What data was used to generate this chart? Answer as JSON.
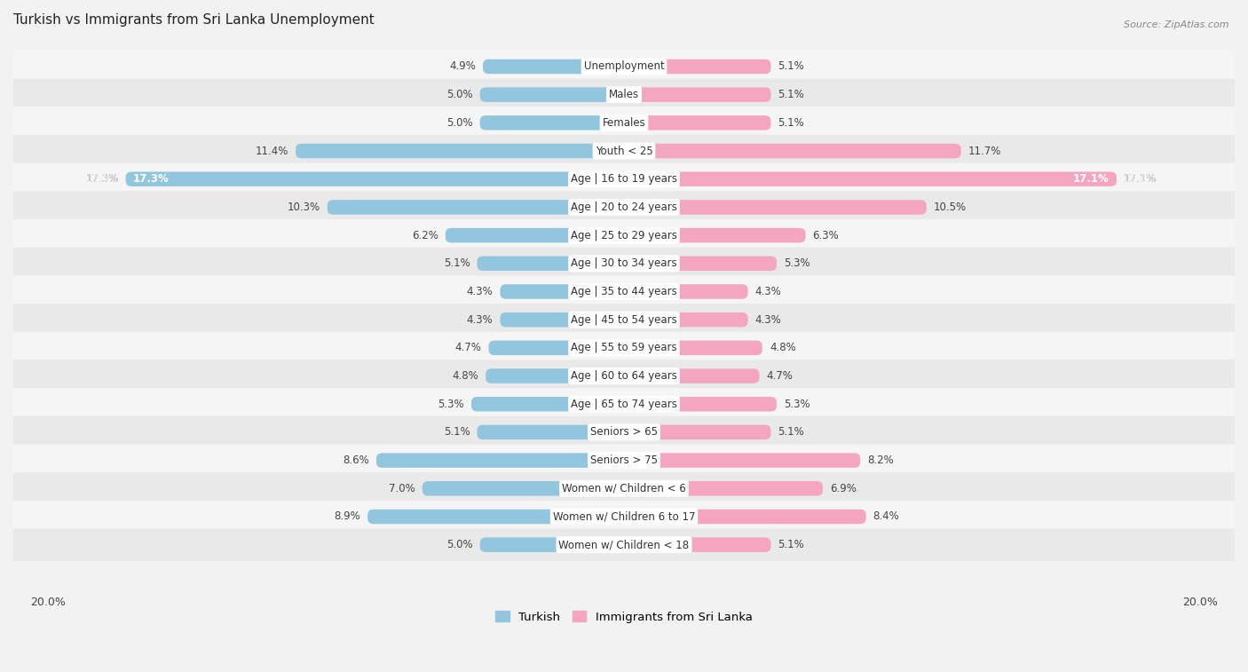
{
  "title": "Turkish vs Immigrants from Sri Lanka Unemployment",
  "source": "Source: ZipAtlas.com",
  "categories": [
    "Unemployment",
    "Males",
    "Females",
    "Youth < 25",
    "Age | 16 to 19 years",
    "Age | 20 to 24 years",
    "Age | 25 to 29 years",
    "Age | 30 to 34 years",
    "Age | 35 to 44 years",
    "Age | 45 to 54 years",
    "Age | 55 to 59 years",
    "Age | 60 to 64 years",
    "Age | 65 to 74 years",
    "Seniors > 65",
    "Seniors > 75",
    "Women w/ Children < 6",
    "Women w/ Children 6 to 17",
    "Women w/ Children < 18"
  ],
  "turkish_values": [
    4.9,
    5.0,
    5.0,
    11.4,
    17.3,
    10.3,
    6.2,
    5.1,
    4.3,
    4.3,
    4.7,
    4.8,
    5.3,
    5.1,
    8.6,
    7.0,
    8.9,
    5.0
  ],
  "srilanka_values": [
    5.1,
    5.1,
    5.1,
    11.7,
    17.1,
    10.5,
    6.3,
    5.3,
    4.3,
    4.3,
    4.8,
    4.7,
    5.3,
    5.1,
    8.2,
    6.9,
    8.4,
    5.1
  ],
  "turkish_color": "#92c5de",
  "srilanka_color": "#f4a6c0",
  "turkish_label": "Turkish",
  "srilanka_label": "Immigrants from Sri Lanka",
  "background_color": "#f2f2f2",
  "row_color_even": "#fafafa",
  "row_color_odd": "#e8e8e8",
  "x_max": 20.0,
  "label_fontsize": 8.5,
  "value_fontsize": 8.5,
  "title_fontsize": 11
}
